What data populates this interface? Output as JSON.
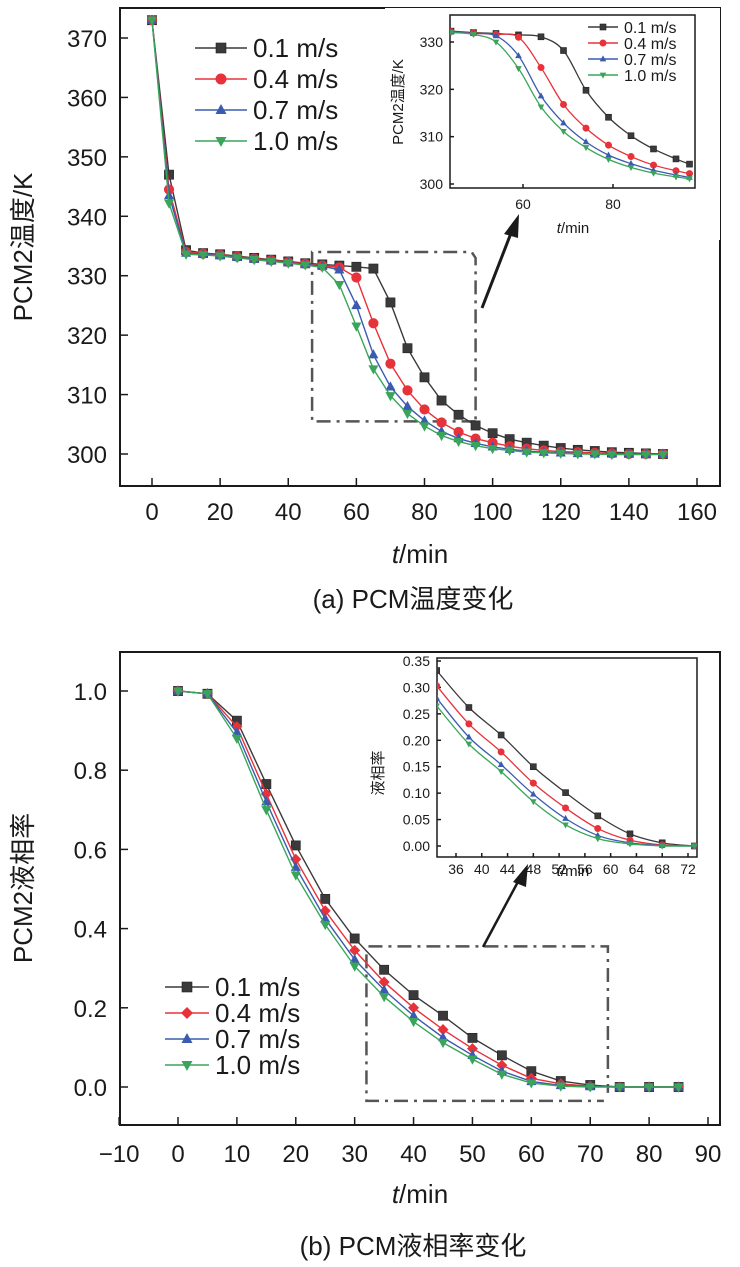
{
  "chart_data": [
    {
      "id": "a",
      "type": "line",
      "caption": "(a) PCM温度变化",
      "xlabel_italic": "t",
      "xlabel_rest": "/min",
      "ylabel": "PCM2温度/K",
      "xlim": [
        -10,
        165
      ],
      "ylim": [
        292,
        375
      ],
      "xticks": [
        0,
        20,
        40,
        60,
        80,
        100,
        120,
        140,
        160
      ],
      "yticks": [
        300,
        310,
        320,
        330,
        340,
        350,
        360,
        370
      ],
      "legend_position": "top-left",
      "x": [
        0,
        5,
        10,
        15,
        20,
        25,
        30,
        35,
        40,
        45,
        50,
        55,
        60,
        65,
        70,
        75,
        80,
        85,
        90,
        95,
        100,
        105,
        110,
        115,
        120,
        125,
        130,
        135,
        140,
        145,
        150
      ],
      "series": [
        {
          "name": "0.1 m/s",
          "color": "#3a3a3a",
          "marker": "square",
          "values": [
            373,
            347,
            334.3,
            333.8,
            333.6,
            333.3,
            333.0,
            332.7,
            332.4,
            332.1,
            331.9,
            331.7,
            331.5,
            331.2,
            325.5,
            317.8,
            312.9,
            309.0,
            306.6,
            304.8,
            303.5,
            302.5,
            301.9,
            301.4,
            301.0,
            300.7,
            300.5,
            300.3,
            300.2,
            300.1,
            300.0
          ]
        },
        {
          "name": "0.4 m/s",
          "color": "#e8323a",
          "marker": "circle",
          "values": [
            373,
            344.5,
            334.0,
            333.7,
            333.5,
            333.2,
            332.9,
            332.6,
            332.3,
            332.0,
            331.7,
            331.4,
            329.7,
            322.0,
            315.2,
            310.7,
            307.5,
            305.3,
            303.7,
            302.6,
            301.9,
            301.3,
            300.9,
            300.6,
            300.4,
            300.3,
            300.2,
            300.1,
            300.0,
            300.0,
            300.0
          ]
        },
        {
          "name": "0.7 m/s",
          "color": "#3a5bb0",
          "marker": "triangle-up",
          "values": [
            373,
            343.5,
            333.8,
            333.6,
            333.4,
            333.1,
            332.8,
            332.5,
            332.2,
            331.9,
            331.6,
            331.0,
            325.0,
            316.7,
            311.3,
            308.0,
            305.6,
            303.8,
            302.6,
            301.8,
            301.2,
            300.8,
            300.5,
            300.3,
            300.2,
            300.1,
            300.0,
            300.0,
            300.0,
            300.0,
            300.0
          ]
        },
        {
          "name": "1.0 m/s",
          "color": "#3aa55a",
          "marker": "triangle-down",
          "values": [
            373,
            342.2,
            333.6,
            333.5,
            333.3,
            333.0,
            332.7,
            332.4,
            332.1,
            331.8,
            331.4,
            328.5,
            321.5,
            314.3,
            309.8,
            306.8,
            304.7,
            303.1,
            302.1,
            301.4,
            300.9,
            300.6,
            300.3,
            300.2,
            300.1,
            300.0,
            300.0,
            299.9,
            299.9,
            299.9,
            299.9
          ]
        }
      ],
      "zoom_box": {
        "x": [
          47,
          95
        ],
        "y": [
          305.5,
          334
        ]
      },
      "inset": {
        "ylabel": "PCM2温度/K",
        "xlabel_italic": "t",
        "xlabel_rest": "/min",
        "xlim": [
          44,
          97
        ],
        "ylim": [
          298.5,
          334
        ],
        "xticks": [
          60,
          80
        ],
        "yticks": [
          300,
          310,
          320,
          330
        ],
        "x": [
          44,
          49,
          54,
          59,
          64,
          69,
          74,
          79,
          84,
          89,
          94,
          97
        ],
        "series": [
          {
            "name": "0.1 m/s",
            "values": [
              332.3,
              332.0,
              331.8,
              331.5,
              331.1,
              328.2,
              319.8,
              314.1,
              310.2,
              307.4,
              305.3,
              304.2
            ]
          },
          {
            "name": "0.4 m/s",
            "values": [
              332.2,
              331.9,
              331.6,
              331.0,
              324.6,
              316.8,
              311.8,
              308.2,
              305.8,
              304.0,
              302.8,
              302.2
            ]
          },
          {
            "name": "0.7 m/s",
            "values": [
              332.1,
              331.8,
              331.3,
              327.1,
              318.6,
              312.9,
              308.9,
              306.1,
              304.3,
              302.9,
              301.9,
              301.4
            ]
          },
          {
            "name": "1.0 m/s",
            "values": [
              332.0,
              331.6,
              330.0,
              324.4,
              316.3,
              311.1,
              307.7,
              305.2,
              303.5,
              302.3,
              301.5,
              301.1
            ]
          }
        ]
      }
    },
    {
      "id": "b",
      "type": "line",
      "caption": "(b) PCM液相率变化",
      "xlabel_italic": "t",
      "xlabel_rest": "/min",
      "ylabel": "PCM2液相率",
      "xlim": [
        -10,
        90
      ],
      "ylim": [
        -0.1,
        1.1
      ],
      "xticks": [
        -10,
        0,
        10,
        20,
        30,
        40,
        50,
        60,
        70,
        80,
        90
      ],
      "xtick_labels": [
        "−10",
        "0",
        "10",
        "20",
        "30",
        "40",
        "50",
        "60",
        "70",
        "80",
        "90"
      ],
      "yticks": [
        0.0,
        0.2,
        0.4,
        0.6,
        0.8,
        1.0
      ],
      "ytick_labels": [
        "0.0",
        "0.2",
        "0.4",
        "0.6",
        "0.8",
        "1.0"
      ],
      "legend_position": "bottom-left",
      "x": [
        0,
        5,
        10,
        15,
        20,
        25,
        30,
        35,
        40,
        45,
        50,
        55,
        60,
        65,
        70,
        75,
        80,
        85
      ],
      "series": [
        {
          "name": "0.1 m/s",
          "color": "#3a3a3a",
          "marker": "square",
          "values": [
            1.0,
            0.993,
            0.925,
            0.765,
            0.61,
            0.475,
            0.375,
            0.296,
            0.232,
            0.18,
            0.124,
            0.08,
            0.04,
            0.015,
            0.005,
            0.0,
            0.0,
            0.0
          ]
        },
        {
          "name": "0.4 m/s",
          "color": "#e8323a",
          "marker": "diamond",
          "values": [
            1.0,
            0.993,
            0.91,
            0.74,
            0.575,
            0.445,
            0.345,
            0.265,
            0.2,
            0.145,
            0.097,
            0.055,
            0.022,
            0.008,
            0.002,
            0.0,
            0.0,
            0.0
          ]
        },
        {
          "name": "0.7 m/s",
          "color": "#3a5bb0",
          "marker": "triangle-up",
          "values": [
            1.0,
            0.993,
            0.895,
            0.72,
            0.555,
            0.425,
            0.322,
            0.245,
            0.18,
            0.125,
            0.08,
            0.04,
            0.014,
            0.004,
            0.001,
            0.0,
            0.0,
            0.0
          ]
        },
        {
          "name": "1.0 m/s",
          "color": "#3aa55a",
          "marker": "triangle-down",
          "values": [
            1.0,
            0.993,
            0.88,
            0.7,
            0.535,
            0.41,
            0.305,
            0.228,
            0.165,
            0.112,
            0.07,
            0.032,
            0.01,
            0.002,
            0.0,
            0.0,
            0.0,
            0.0
          ]
        }
      ],
      "zoom_box": {
        "x": [
          32,
          73
        ],
        "y": [
          -0.035,
          0.355
        ]
      },
      "inset": {
        "ylabel": "液相率",
        "xlabel_italic": "t",
        "xlabel_rest": "/min",
        "xlim": [
          33,
          73
        ],
        "ylim": [
          -0.035,
          0.35
        ],
        "xticks": [
          36,
          40,
          44,
          48,
          52,
          56,
          60,
          64,
          68,
          72
        ],
        "yticks": [
          0.0,
          0.05,
          0.1,
          0.15,
          0.2,
          0.25,
          0.3,
          0.35
        ],
        "ytick_labels": [
          "0.00",
          "0.05",
          "0.10",
          "0.15",
          "0.20",
          "0.25",
          "0.30",
          "0.35"
        ],
        "x": [
          33,
          38,
          43,
          48,
          53,
          58,
          63,
          68,
          73
        ],
        "series": [
          {
            "name": "0.1 m/s",
            "values": [
              0.332,
              0.262,
              0.21,
              0.15,
              0.101,
              0.057,
              0.023,
              0.006,
              0.0
            ]
          },
          {
            "name": "0.4 m/s",
            "values": [
              0.303,
              0.231,
              0.178,
              0.119,
              0.072,
              0.033,
              0.011,
              0.002,
              0.0
            ]
          },
          {
            "name": "0.7 m/s",
            "values": [
              0.28,
              0.206,
              0.154,
              0.098,
              0.052,
              0.02,
              0.006,
              0.001,
              0.0
            ]
          },
          {
            "name": "1.0 m/s",
            "values": [
              0.265,
              0.193,
              0.141,
              0.084,
              0.04,
              0.014,
              0.004,
              0.0,
              0.0
            ]
          }
        ]
      }
    }
  ]
}
